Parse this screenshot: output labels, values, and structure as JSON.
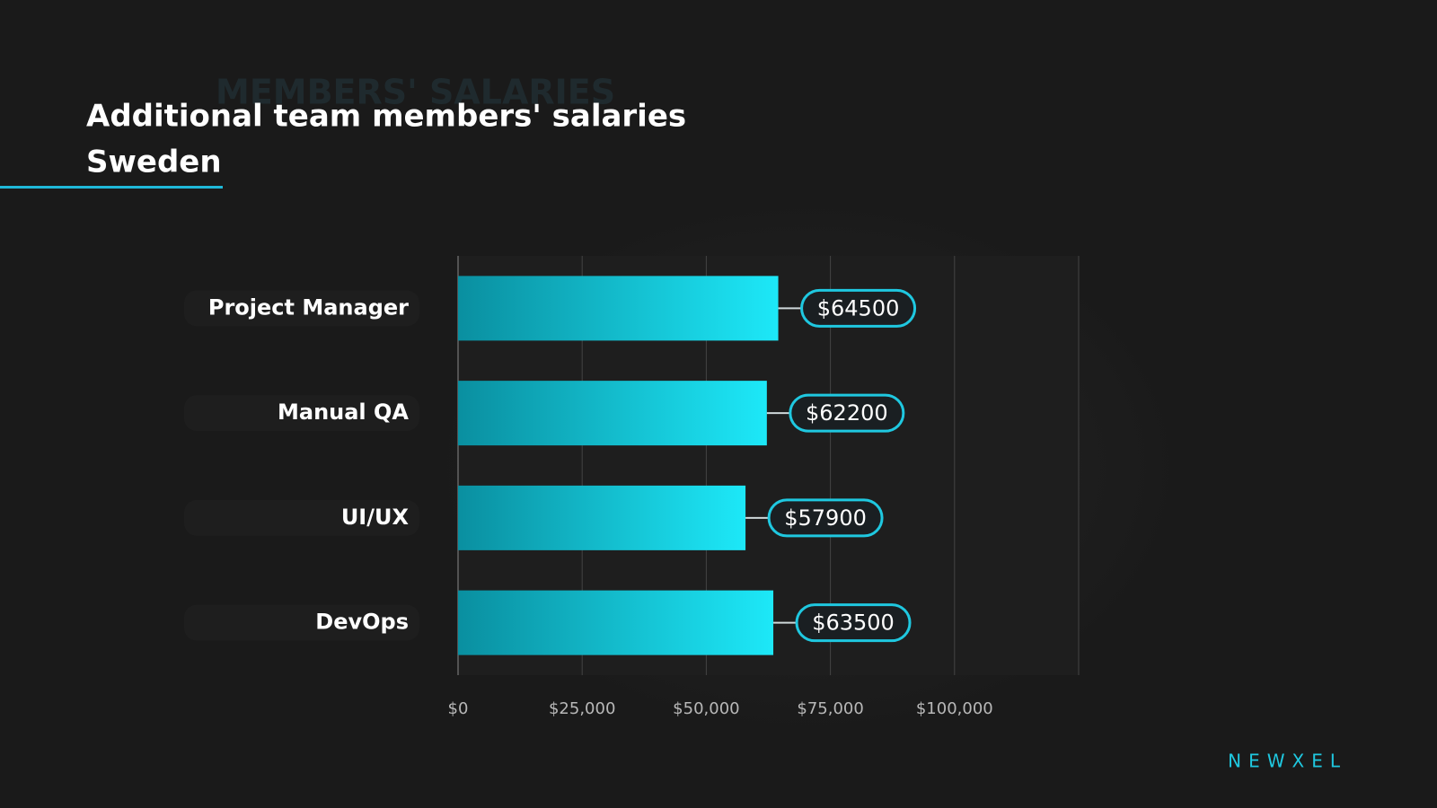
{
  "background_text": "MEMBERS' SALARIES",
  "brand": "NEWXEL",
  "chart_data": {
    "type": "barh",
    "title": "Additional team members' salaries",
    "subtitle": "Sweden",
    "categories": [
      "Project Manager",
      "Manual QA",
      "UI/UX",
      "DevOps"
    ],
    "values": [
      64500,
      62200,
      57900,
      63500
    ],
    "value_labels": [
      "$64500",
      "$62200",
      "$57900",
      "$63500"
    ],
    "color": "#1de8f8",
    "xlim": [
      0,
      125000
    ],
    "xticks": [
      {
        "value": 0,
        "label": "$0"
      },
      {
        "value": 25000,
        "label": "$25,000"
      },
      {
        "value": 50000,
        "label": "$50,000"
      },
      {
        "value": 75000,
        "label": "$75,000"
      },
      {
        "value": 100000,
        "label": "$100,000"
      }
    ],
    "grid": true
  }
}
